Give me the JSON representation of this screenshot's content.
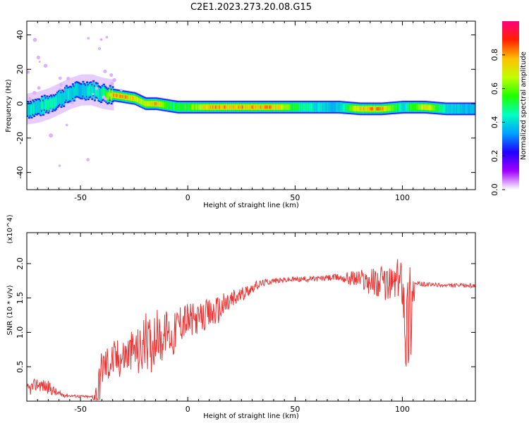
{
  "figure": {
    "title": "C2E1.2023.273.20.08.G15"
  },
  "chart_data": [
    {
      "type": "heatmap",
      "title": "C2E1.2023.273.20.08.G15",
      "xlabel": "Height of straight line (km)",
      "ylabel": "Frequency (Hz)",
      "xlim": [
        -75,
        134
      ],
      "ylim": [
        -50,
        48
      ],
      "xticks": [
        -50,
        0,
        50,
        100
      ],
      "yticks": [
        -40,
        -20,
        0,
        20,
        40
      ],
      "ridge": {
        "x": [
          -75,
          -70,
          -65,
          -60,
          -55,
          -50,
          -45,
          -40,
          -35,
          -30,
          -25,
          -20,
          -15,
          -10,
          -5,
          0,
          10,
          20,
          30,
          40,
          50,
          60,
          70,
          80,
          90,
          100,
          110,
          120,
          134
        ],
        "y": [
          -3,
          -2,
          0,
          3,
          6,
          8,
          8,
          6,
          5,
          4,
          3,
          0,
          0,
          -1,
          -2,
          -2,
          -2,
          -2,
          -2,
          -2,
          -2,
          -2,
          -2,
          -3,
          -3,
          -2,
          -2,
          -3,
          -3
        ],
        "amplitude": [
          0.45,
          0.45,
          0.5,
          0.45,
          0.45,
          0.4,
          0.45,
          0.5,
          0.9,
          0.85,
          0.8,
          0.7,
          0.85,
          0.55,
          0.55,
          0.6,
          0.85,
          0.85,
          0.85,
          0.85,
          0.55,
          0.45,
          0.4,
          0.85,
          0.85,
          0.45,
          0.8,
          0.45,
          0.4
        ]
      },
      "colorbar": {
        "label": "Normalized spectral amplitude",
        "range": [
          0.0,
          1.0
        ],
        "ticks": [
          "0.0",
          "0.2",
          "0.4",
          "0.6",
          "0.8"
        ],
        "colors": [
          "#ffffff",
          "#a000ff",
          "#2000ff",
          "#00a0ff",
          "#00ffc0",
          "#20ff00",
          "#c0ff00",
          "#ffc000",
          "#ff2000",
          "#ff0080"
        ]
      }
    },
    {
      "type": "line",
      "xlabel": "Height of straight line (km)",
      "ylabel": "SNR (10 * v/v)",
      "scale_label": "(x10^4)",
      "xlim": [
        -75,
        134
      ],
      "ylim": [
        0.0,
        2.45
      ],
      "xticks": [
        -50,
        0,
        50,
        100
      ],
      "yticks": [
        "0.5",
        "1.0",
        "1.5",
        "2.0"
      ],
      "line_color": "#ee3333",
      "series": [
        {
          "x": [
            -75,
            -70,
            -65,
            -60,
            -55,
            -50,
            -45,
            -42,
            -40,
            -35,
            -30,
            -25,
            -22,
            -20,
            -17,
            -15,
            -12,
            -10,
            -7,
            -5,
            -2,
            0,
            5,
            10,
            15,
            20,
            25,
            30,
            35,
            40,
            50,
            60,
            70,
            80,
            85,
            90,
            95,
            100,
            102,
            104,
            106,
            110,
            120,
            134
          ],
          "y": [
            0.15,
            0.25,
            0.2,
            0.1,
            0.08,
            0.07,
            0.06,
            0.1,
            0.5,
            0.6,
            0.65,
            0.75,
            0.7,
            0.9,
            0.8,
            1.0,
            0.85,
            1.05,
            0.9,
            1.1,
            1.2,
            1.15,
            1.2,
            1.25,
            1.35,
            1.45,
            1.55,
            1.65,
            1.72,
            1.75,
            1.77,
            1.78,
            1.8,
            1.78,
            1.75,
            1.72,
            1.7,
            1.8,
            1.0,
            1.5,
            1.7,
            1.7,
            1.68,
            1.68
          ],
          "noise": [
            0.1,
            0.1,
            0.1,
            0.05,
            0.02,
            0.02,
            0.02,
            0.3,
            0.3,
            0.3,
            0.3,
            0.3,
            0.4,
            0.4,
            0.4,
            0.4,
            0.3,
            0.3,
            0.3,
            0.3,
            0.3,
            0.3,
            0.2,
            0.25,
            0.2,
            0.2,
            0.1,
            0.08,
            0.05,
            0.04,
            0.04,
            0.04,
            0.05,
            0.15,
            0.2,
            0.25,
            0.25,
            0.4,
            0.9,
            0.9,
            0.05,
            0.03,
            0.03,
            0.03
          ]
        }
      ]
    }
  ]
}
